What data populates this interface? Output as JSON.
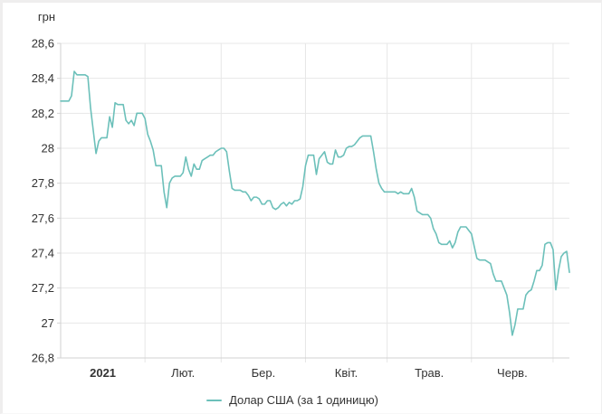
{
  "page": {
    "unit_label": "грн"
  },
  "legend": {
    "label": "Долар США (за 1 одиницю)"
  },
  "chart_data": {
    "type": "line",
    "title": "",
    "xlabel": "",
    "ylabel": "грн",
    "ylim": [
      26.8,
      28.6
    ],
    "grid": true,
    "legend_position": "bottom",
    "colors": {
      "line": "#6cc0ba",
      "grid": "#e7e7e7",
      "axis": "#d2d2d2",
      "text": "#333333",
      "background": "#ffffff"
    },
    "y_ticks": [
      {
        "value": 28.6,
        "label": "28,6"
      },
      {
        "value": 28.4,
        "label": "28,4"
      },
      {
        "value": 28.2,
        "label": "28,2"
      },
      {
        "value": 28.0,
        "label": "28"
      },
      {
        "value": 27.8,
        "label": "27,8"
      },
      {
        "value": 27.6,
        "label": "27,6"
      },
      {
        "value": 27.4,
        "label": "27,4"
      },
      {
        "value": 27.2,
        "label": "27,2"
      },
      {
        "value": 27.0,
        "label": "27"
      },
      {
        "value": 26.8,
        "label": "26,8"
      }
    ],
    "x_gridlines_day_index": [
      31,
      59,
      90,
      120,
      151,
      181
    ],
    "x_month_labels": [
      {
        "label": "2021",
        "day_index": 15.5,
        "bold": true
      },
      {
        "label": "Лют.",
        "day_index": 45,
        "bold": false
      },
      {
        "label": "Бер.",
        "day_index": 74.5,
        "bold": false
      },
      {
        "label": "Квіт.",
        "day_index": 105,
        "bold": false
      },
      {
        "label": "Трав.",
        "day_index": 135.5,
        "bold": false
      },
      {
        "label": "Черв.",
        "day_index": 166,
        "bold": false
      }
    ],
    "series": [
      {
        "name": "Долар США (за 1 одиницю)",
        "color": "#6cc0ba",
        "start_date": "2021-01-01",
        "frequency": "daily",
        "values": [
          28.27,
          28.27,
          28.27,
          28.27,
          28.3,
          28.44,
          28.42,
          28.42,
          28.42,
          28.42,
          28.41,
          28.23,
          28.1,
          27.97,
          28.04,
          28.06,
          28.06,
          28.06,
          28.18,
          28.12,
          28.26,
          28.25,
          28.25,
          28.25,
          28.16,
          28.14,
          28.16,
          28.13,
          28.2,
          28.2,
          28.2,
          28.17,
          28.08,
          28.04,
          27.99,
          27.9,
          27.9,
          27.9,
          27.75,
          27.66,
          27.8,
          27.83,
          27.84,
          27.84,
          27.84,
          27.86,
          27.95,
          27.88,
          27.84,
          27.91,
          27.88,
          27.88,
          27.93,
          27.94,
          27.95,
          27.96,
          27.96,
          27.98,
          27.99,
          28.0,
          28.0,
          27.98,
          27.87,
          27.77,
          27.76,
          27.76,
          27.76,
          27.75,
          27.75,
          27.73,
          27.7,
          27.72,
          27.72,
          27.71,
          27.68,
          27.68,
          27.7,
          27.7,
          27.66,
          27.65,
          27.66,
          27.68,
          27.69,
          27.67,
          27.69,
          27.68,
          27.7,
          27.7,
          27.71,
          27.78,
          27.9,
          27.96,
          27.96,
          27.96,
          27.85,
          27.94,
          27.96,
          27.98,
          27.92,
          27.91,
          27.91,
          27.99,
          27.95,
          27.95,
          27.96,
          28.0,
          28.01,
          28.01,
          28.02,
          28.04,
          28.06,
          28.07,
          28.07,
          28.07,
          28.07,
          27.98,
          27.88,
          27.8,
          27.77,
          27.75,
          27.75,
          27.75,
          27.75,
          27.75,
          27.74,
          27.75,
          27.74,
          27.74,
          27.74,
          27.77,
          27.72,
          27.64,
          27.63,
          27.62,
          27.62,
          27.62,
          27.6,
          27.54,
          27.51,
          27.46,
          27.45,
          27.45,
          27.45,
          27.47,
          27.43,
          27.46,
          27.52,
          27.55,
          27.55,
          27.55,
          27.53,
          27.51,
          27.44,
          27.37,
          27.36,
          27.36,
          27.36,
          27.35,
          27.34,
          27.28,
          27.24,
          27.24,
          27.24,
          27.2,
          27.16,
          27.06,
          26.93,
          26.99,
          27.08,
          27.08,
          27.08,
          27.16,
          27.18,
          27.19,
          27.24,
          27.3,
          27.3,
          27.33,
          27.45,
          27.46,
          27.46,
          27.42,
          27.19,
          27.3,
          27.38,
          27.4,
          27.41,
          27.29
        ]
      }
    ]
  }
}
